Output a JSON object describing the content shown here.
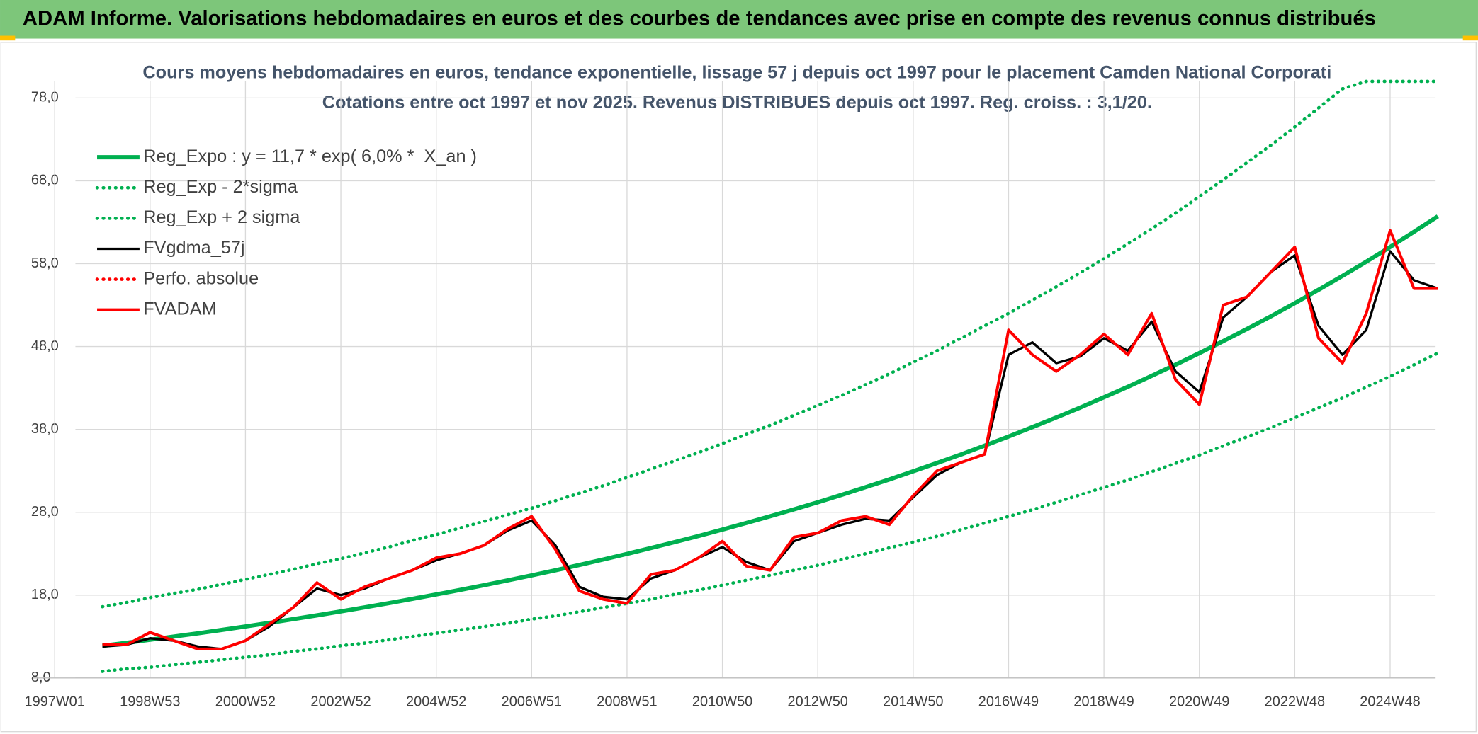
{
  "header": {
    "title": "ADAM Informe. Valorisations hebdomadaires en euros et des courbes de tendances avec prise en compte des revenus connus distribués"
  },
  "chart_data": {
    "type": "line",
    "title": "Cours moyens hebdomadaires en euros, tendance exponentielle, lissage 57 j depuis oct 1997 pour le placement Camden National Corporati",
    "subtitle": "Cotations entre oct 1997 et nov 2025. Revenus DISTRIBUES depuis oct 1997. Reg. croiss. : 3,1/20.",
    "categories": [
      "1997W01",
      null,
      null,
      null,
      "1998W53",
      null,
      null,
      null,
      "2000W52",
      null,
      null,
      null,
      "2002W52",
      null,
      null,
      null,
      "2004W52",
      null,
      null,
      null,
      "2006W51",
      null,
      null,
      null,
      "2008W51",
      null,
      null,
      null,
      "2010W50",
      null,
      null,
      null,
      "2012W50",
      null,
      null,
      null,
      "2014W50",
      null,
      null,
      null,
      "2016W49",
      null,
      null,
      null,
      "2018W49",
      null,
      null,
      null,
      "2020W49",
      null,
      null,
      null,
      "2022W48",
      null,
      null,
      null,
      "2024W48",
      null,
      null
    ],
    "ylim": [
      8,
      80
    ],
    "yticks": [
      {
        "value": 8,
        "label": "8,0"
      },
      {
        "value": 18,
        "label": "18,0"
      },
      {
        "value": 28,
        "label": "28,0"
      },
      {
        "value": 38,
        "label": "38,0"
      },
      {
        "value": 48,
        "label": "48,0"
      },
      {
        "value": 58,
        "label": "58,0"
      },
      {
        "value": 68,
        "label": "68,0"
      },
      {
        "value": 78,
        "label": "78,0"
      }
    ],
    "grid": true,
    "legend": "upper left",
    "series": [
      {
        "name": "Reg_Expo : y = 11,7 * exp( 6,0% *  X_an )",
        "color": "#00b050",
        "values": [
          null,
          null,
          11.88,
          12.24,
          12.61,
          13.0,
          13.39,
          13.8,
          14.22,
          14.65,
          15.1,
          15.56,
          16.03,
          16.52,
          17.02,
          17.54,
          18.08,
          18.63,
          19.19,
          19.78,
          20.38,
          21.0,
          21.64,
          22.3,
          22.98,
          23.68,
          24.4,
          25.14,
          25.91,
          26.7,
          27.51,
          28.35,
          29.21,
          30.1,
          31.02,
          31.96,
          32.94,
          33.94,
          34.97,
          36.04,
          37.14,
          38.27,
          39.43,
          40.63,
          41.87,
          43.14,
          44.46,
          45.81,
          47.21,
          48.65,
          50.13,
          51.65,
          53.23,
          54.85,
          56.52,
          58.24,
          60.01,
          61.84,
          63.72
        ]
      },
      {
        "name": "Reg_Exp - 2*sigma",
        "color": "#00b050",
        "dash": true,
        "values": [
          null,
          null,
          8.8,
          9.1,
          9.3,
          9.6,
          9.9,
          10.2,
          10.5,
          10.8,
          11.2,
          11.5,
          11.9,
          12.2,
          12.6,
          13.0,
          13.4,
          13.8,
          14.2,
          14.6,
          15.1,
          15.5,
          16.0,
          16.5,
          17.0,
          17.5,
          18.1,
          18.6,
          19.2,
          19.8,
          20.4,
          21.0,
          21.6,
          22.3,
          23.0,
          23.7,
          24.4,
          25.1,
          25.9,
          26.7,
          27.5,
          28.3,
          29.2,
          30.1,
          31.0,
          31.9,
          32.9,
          33.9,
          34.9,
          36.0,
          37.1,
          38.2,
          39.4,
          40.6,
          41.8,
          43.1,
          44.4,
          45.8,
          47.2
        ]
      },
      {
        "name": "Reg_Exp + 2 sigma",
        "color": "#00b050",
        "dash": true,
        "values": [
          null,
          null,
          16.6,
          17.1,
          17.7,
          18.2,
          18.7,
          19.3,
          19.9,
          20.5,
          21.1,
          21.8,
          22.4,
          23.1,
          23.8,
          24.6,
          25.3,
          26.1,
          26.9,
          27.7,
          28.5,
          29.4,
          30.3,
          31.2,
          32.2,
          33.2,
          34.2,
          35.2,
          36.3,
          37.4,
          38.5,
          39.7,
          40.9,
          42.1,
          43.4,
          44.7,
          46.1,
          47.5,
          49.0,
          50.5,
          52.0,
          53.6,
          55.2,
          56.9,
          58.6,
          60.4,
          62.2,
          64.1,
          66.1,
          68.1,
          70.2,
          72.3,
          74.5,
          76.8,
          79.1,
          80,
          80,
          80,
          80
        ]
      },
      {
        "name": "FVgdma_57j",
        "color": "#000000",
        "values": [
          null,
          null,
          11.8,
          12.0,
          12.8,
          12.5,
          11.8,
          11.5,
          12.5,
          14.2,
          16.5,
          18.8,
          18.0,
          18.8,
          20.0,
          21.0,
          22.2,
          23.0,
          24.0,
          25.8,
          27.0,
          24.0,
          19.0,
          17.8,
          17.5,
          20.0,
          21.0,
          22.5,
          23.8,
          22.0,
          21.0,
          24.5,
          25.5,
          26.5,
          27.2,
          27.0,
          29.8,
          32.5,
          34.0,
          35.0,
          47.0,
          48.5,
          46.0,
          46.8,
          49.0,
          47.5,
          51.0,
          45.0,
          42.5,
          51.5,
          54.0,
          57.0,
          59.0,
          50.5,
          47.0,
          50.0,
          59.5,
          56.0,
          55.0
        ]
      },
      {
        "name": "Perfo. absolue",
        "color": "#ff0000",
        "dash": true
      },
      {
        "name": "FVADAM",
        "color": "#ff0000",
        "values": [
          null,
          null,
          12.0,
          12.0,
          13.5,
          12.5,
          11.5,
          11.5,
          12.5,
          14.5,
          16.5,
          19.5,
          17.5,
          19.0,
          20.0,
          21.0,
          22.5,
          23.0,
          24.0,
          26.0,
          27.5,
          23.5,
          18.5,
          17.5,
          17.0,
          20.5,
          21.0,
          22.5,
          24.5,
          21.5,
          21.0,
          25.0,
          25.5,
          27.0,
          27.5,
          26.5,
          30.0,
          33.0,
          34.0,
          35.0,
          50.0,
          47.0,
          45.0,
          47.0,
          49.5,
          47.0,
          52.0,
          44.0,
          41.0,
          53.0,
          54.0,
          57.0,
          60.0,
          49.0,
          46.0,
          52.0,
          62.0,
          55.0,
          55.0
        ]
      }
    ]
  }
}
